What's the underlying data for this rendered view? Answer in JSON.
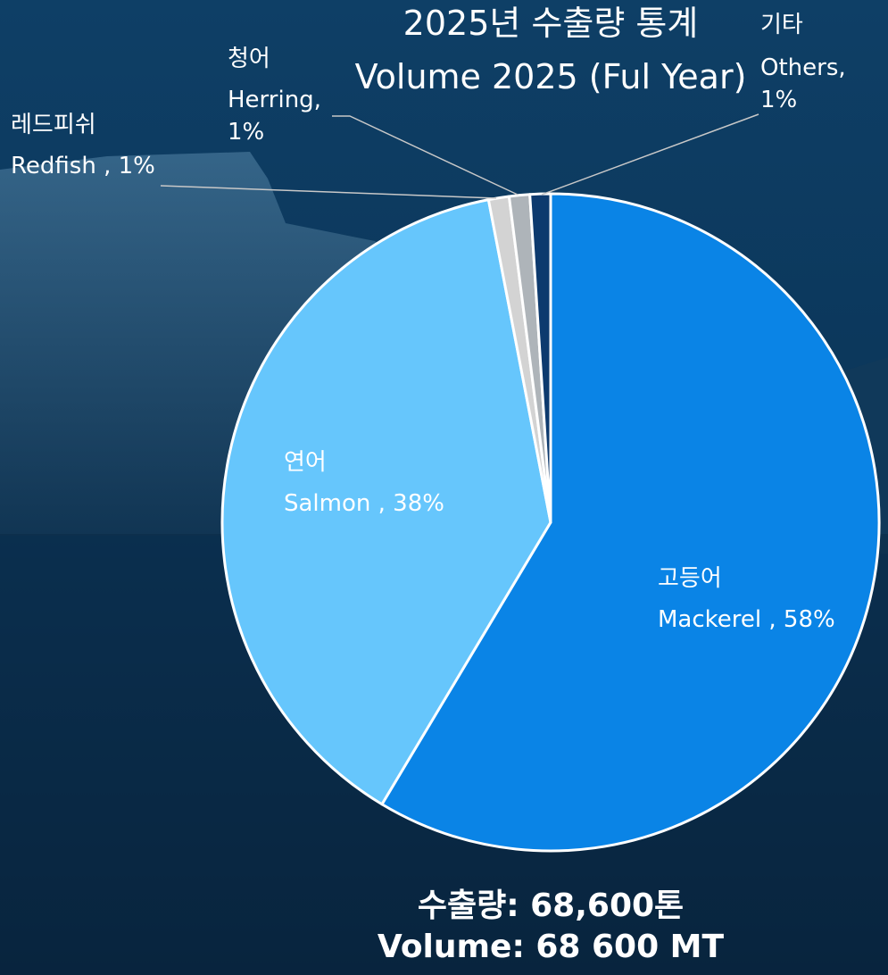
{
  "chart_data": {
    "type": "pie",
    "title": "2025년 수출량 통계",
    "subtitle": "Volume 2025 (Ful Year)",
    "categories": [
      "고등어",
      "연어",
      "레드피쉬",
      "청어",
      "기타"
    ],
    "values": [
      58,
      38,
      1,
      1,
      1
    ],
    "value_labels": [
      "Mackerel , 58%",
      "Salmon , 38%",
      "Redfish , 1%",
      "Herring,\n1%",
      "Others,\n1%"
    ],
    "colors": [
      "#0a84e6",
      "#66c6fc",
      "#d3d3d3",
      "#aeb4b9",
      "#0d3a6e"
    ],
    "annotations": [
      "수출량: 68,600톤",
      "Volume: 68 600 MT"
    ]
  }
}
